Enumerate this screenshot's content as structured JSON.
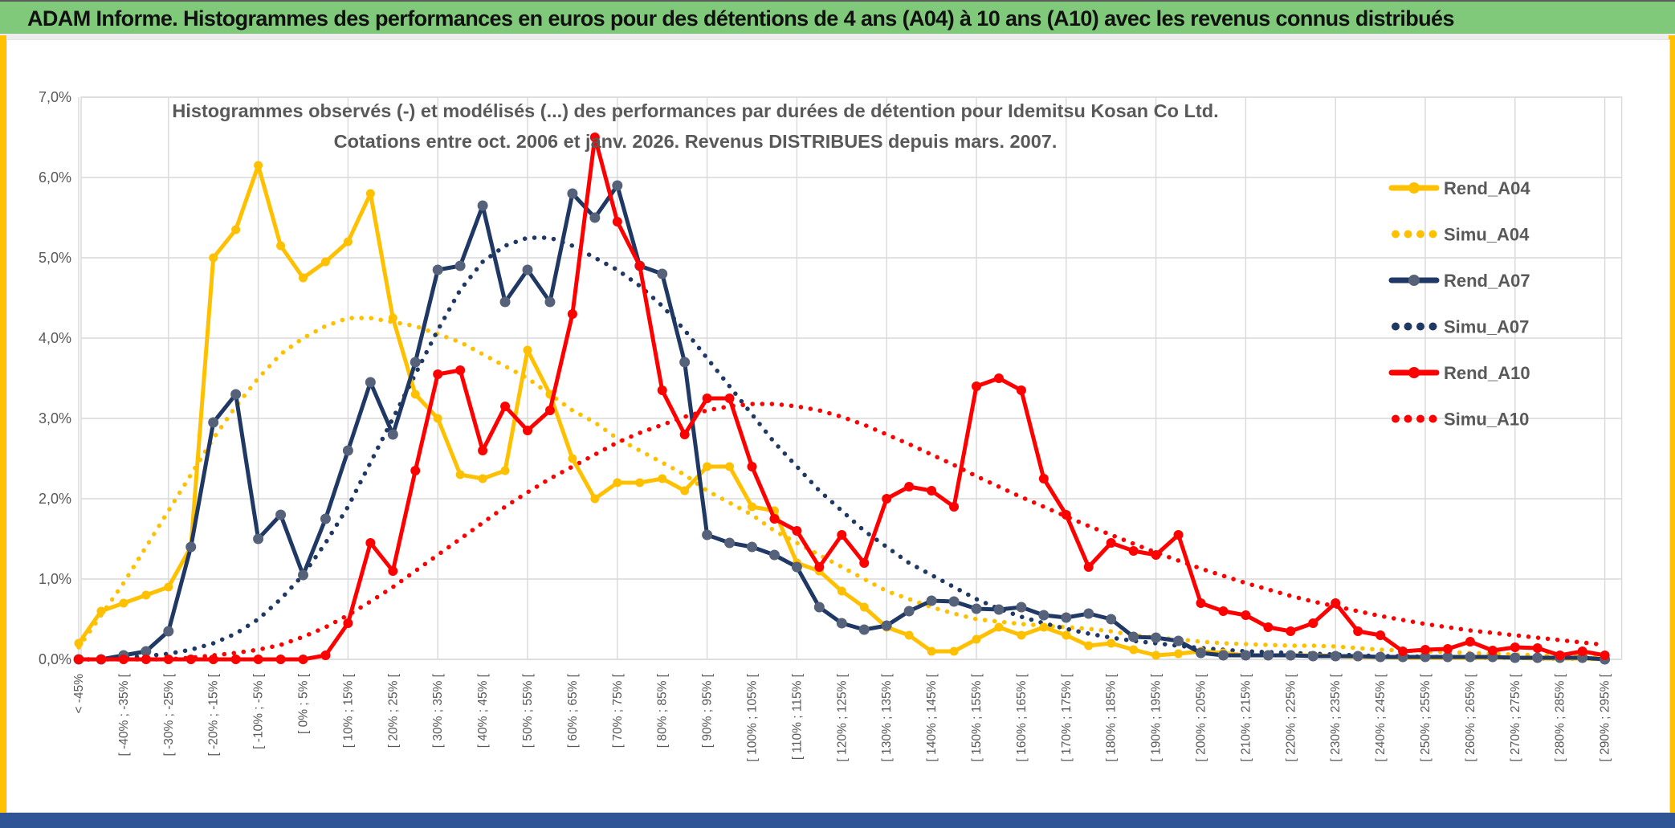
{
  "header": {
    "title": "ADAM Informe. Histogrammes des performances en euros pour des détentions de 4 ans (A04) à 10 ans (A10) avec les revenus connus distribués"
  },
  "accent_colors": {
    "titlebar_green": "#80C97B",
    "frame_gold": "#FFC000",
    "bottombar_blue": "#2F5597",
    "grid_gray": "#D9D9D9",
    "text_gray": "#595959"
  },
  "chart_data": {
    "type": "line",
    "title_line1": "Histogrammes observés (-) et modélisés (...) des performances par durées de détention pour Idemitsu Kosan Co Ltd.",
    "title_line2": "Cotations entre oct. 2006 et janv. 2026. Revenus DISTRIBUES depuis mars. 2007.",
    "n_bins": 69,
    "label_every": 2,
    "ylim": [
      0,
      7
    ],
    "grid": "on",
    "legend_position": "right",
    "y_tick_labels": [
      "0,0%",
      "1,0%",
      "2,0%",
      "3,0%",
      "4,0%",
      "5,0%",
      "6,0%",
      "7,0%"
    ],
    "x_tick_labels": [
      "< -45%",
      "[ -40% ; -35% [",
      "[ -30% ; -25% [",
      "[ -20% ; -15% [",
      "[ -10% ; -5% [",
      "[ 0% ; 5% [",
      "[ 10% ; 15% [",
      "[ 20% ; 25% [",
      "[ 30% ; 35% [",
      "[ 40% ; 45% [",
      "[ 50% ; 55% [",
      "[ 60% ; 65% [",
      "[ 70% ; 75% [",
      "[ 80% ; 85% [",
      "[ 90% ; 95% [",
      "[ 100% ; 105% [",
      "[ 110% ; 115% [",
      "[ 120% ; 125% [",
      "[ 130% ; 135% [",
      "[ 140% ; 145% [",
      "[ 150% ; 155% [",
      "[ 160% ; 165% [",
      "[ 170% ; 175% [",
      "[ 180% ; 185% [",
      "[ 190% ; 195% [",
      "[ 200% ; 205% [",
      "[ 210% ; 215% [",
      "[ 220% ; 225% [",
      "[ 230% ; 235% [",
      "[ 240% ; 245% [",
      "[ 250% ; 255% [",
      "[ 260% ; 265% [",
      "[ 270% ; 275% [",
      "[ 280% ; 285% [",
      "[ 290% ; 295% ["
    ],
    "series": [
      {
        "name": "Simu_A04",
        "style": "dotted",
        "color": "#FFC000",
        "values": [
          0.15,
          0.55,
          0.95,
          1.4,
          1.85,
          2.3,
          2.75,
          3.15,
          3.5,
          3.8,
          4.0,
          4.15,
          4.25,
          4.25,
          4.2,
          4.15,
          4.05,
          3.95,
          3.8,
          3.65,
          3.5,
          3.3,
          3.1,
          2.95,
          2.75,
          2.6,
          2.45,
          2.3,
          2.1,
          1.95,
          1.8,
          1.6,
          1.45,
          1.3,
          1.15,
          1.0,
          0.85,
          0.75,
          0.65,
          0.57,
          0.5,
          0.47,
          0.44,
          0.42,
          0.4,
          0.38,
          0.35,
          0.3,
          0.27,
          0.25,
          0.22,
          0.2,
          0.19,
          0.18,
          0.17,
          0.17,
          0.16,
          0.14,
          0.12,
          0.11,
          0.1,
          0.09,
          0.08,
          0.07,
          0.06,
          0.05,
          0.05,
          0.04,
          0.04
        ]
      },
      {
        "name": "Simu_A07",
        "style": "dotted",
        "color": "#1F3864",
        "values": [
          0,
          0,
          0.02,
          0.04,
          0.07,
          0.12,
          0.2,
          0.32,
          0.5,
          0.75,
          1.05,
          1.45,
          1.9,
          2.45,
          3.0,
          3.55,
          4.1,
          4.6,
          4.95,
          5.15,
          5.25,
          5.25,
          5.15,
          5.0,
          4.85,
          4.65,
          4.4,
          4.1,
          3.75,
          3.4,
          3.05,
          2.7,
          2.4,
          2.1,
          1.85,
          1.6,
          1.4,
          1.2,
          1.05,
          0.9,
          0.75,
          0.63,
          0.53,
          0.45,
          0.38,
          0.32,
          0.27,
          0.23,
          0.2,
          0.17,
          0.14,
          0.12,
          0.1,
          0.09,
          0.08,
          0.07,
          0.06,
          0.05,
          0.04,
          0.04,
          0.03,
          0.03,
          0.02,
          0.02,
          0.02,
          0.01,
          0.01,
          0.01,
          0.01
        ]
      },
      {
        "name": "Simu_A10",
        "style": "dotted",
        "color": "#FF0000",
        "values": [
          0,
          0,
          0,
          0,
          0,
          0.02,
          0.05,
          0.08,
          0.12,
          0.18,
          0.28,
          0.4,
          0.55,
          0.72,
          0.9,
          1.1,
          1.3,
          1.5,
          1.7,
          1.9,
          2.08,
          2.25,
          2.4,
          2.55,
          2.7,
          2.82,
          2.92,
          3.02,
          3.1,
          3.15,
          3.18,
          3.18,
          3.15,
          3.1,
          3.02,
          2.92,
          2.8,
          2.68,
          2.55,
          2.42,
          2.28,
          2.15,
          2.02,
          1.9,
          1.78,
          1.66,
          1.55,
          1.44,
          1.33,
          1.23,
          1.13,
          1.04,
          0.95,
          0.87,
          0.79,
          0.72,
          0.66,
          0.6,
          0.54,
          0.49,
          0.44,
          0.4,
          0.36,
          0.33,
          0.3,
          0.27,
          0.24,
          0.21,
          0.18
        ]
      },
      {
        "name": "Rend_A04",
        "style": "solid",
        "color": "#FFC000",
        "marker_color": "#FFC000",
        "marker_r": 5.5,
        "values": [
          0.2,
          0.6,
          0.7,
          0.8,
          0.9,
          1.4,
          5.0,
          5.35,
          6.15,
          5.15,
          4.75,
          4.95,
          5.2,
          5.8,
          4.25,
          3.3,
          3.0,
          2.3,
          2.25,
          2.35,
          3.85,
          3.3,
          2.5,
          2.0,
          2.2,
          2.2,
          2.25,
          2.1,
          2.4,
          2.4,
          1.9,
          1.85,
          1.2,
          1.1,
          0.85,
          0.65,
          0.4,
          0.3,
          0.1,
          0.1,
          0.25,
          0.4,
          0.3,
          0.4,
          0.3,
          0.17,
          0.2,
          0.12,
          0.05,
          0.07,
          0.1,
          0.08,
          0.05,
          0.05,
          0.05,
          0.05,
          0.04,
          0.03,
          0.03,
          0.02,
          0.02,
          0.02,
          0.02,
          0.02,
          0.02,
          0.01,
          0.01,
          0.01,
          0.0
        ]
      },
      {
        "name": "Rend_A07",
        "style": "solid",
        "color": "#1F3864",
        "marker_color": "#56617A",
        "marker_r": 6.5,
        "values": [
          0,
          0,
          0.05,
          0.1,
          0.35,
          1.4,
          2.95,
          3.3,
          1.5,
          1.8,
          1.05,
          1.75,
          2.6,
          3.45,
          2.8,
          3.7,
          4.85,
          4.9,
          5.65,
          4.45,
          4.85,
          4.45,
          5.8,
          5.5,
          5.9,
          4.9,
          4.8,
          3.7,
          1.55,
          1.45,
          1.4,
          1.3,
          1.15,
          0.65,
          0.45,
          0.37,
          0.42,
          0.6,
          0.73,
          0.72,
          0.63,
          0.62,
          0.65,
          0.55,
          0.52,
          0.57,
          0.5,
          0.28,
          0.27,
          0.23,
          0.08,
          0.05,
          0.05,
          0.05,
          0.05,
          0.04,
          0.04,
          0.04,
          0.03,
          0.03,
          0.03,
          0.03,
          0.03,
          0.03,
          0.02,
          0.02,
          0.02,
          0.02,
          0.0
        ]
      },
      {
        "name": "Rend_A10",
        "style": "solid",
        "color": "#FF0000",
        "marker_color": "#FF0000",
        "marker_r": 6,
        "values": [
          0,
          0,
          0,
          0,
          0,
          0,
          0,
          0,
          0,
          0,
          0,
          0.05,
          0.45,
          1.45,
          1.1,
          2.35,
          3.55,
          3.6,
          2.6,
          3.15,
          2.85,
          3.1,
          4.3,
          6.5,
          5.45,
          4.9,
          3.35,
          2.8,
          3.25,
          3.25,
          2.4,
          1.75,
          1.6,
          1.15,
          1.55,
          1.2,
          2.0,
          2.15,
          2.1,
          1.9,
          3.4,
          3.5,
          3.35,
          2.25,
          1.8,
          1.15,
          1.45,
          1.35,
          1.3,
          1.55,
          0.7,
          0.6,
          0.55,
          0.4,
          0.35,
          0.45,
          0.7,
          0.35,
          0.3,
          0.1,
          0.12,
          0.13,
          0.22,
          0.11,
          0.15,
          0.14,
          0.05,
          0.1,
          0.05
        ]
      }
    ],
    "legend": [
      {
        "label": "Rend_A04",
        "style": "solid",
        "color": "#FFC000"
      },
      {
        "label": "Simu_A04",
        "style": "dotted",
        "color": "#FFC000"
      },
      {
        "label": "Rend_A07",
        "style": "solid",
        "color": "#1F3864",
        "marker_color": "#56617A"
      },
      {
        "label": "Simu_A07",
        "style": "dotted",
        "color": "#1F3864"
      },
      {
        "label": "Rend_A10",
        "style": "solid",
        "color": "#FF0000"
      },
      {
        "label": "Simu_A10",
        "style": "dotted",
        "color": "#FF0000"
      }
    ]
  }
}
